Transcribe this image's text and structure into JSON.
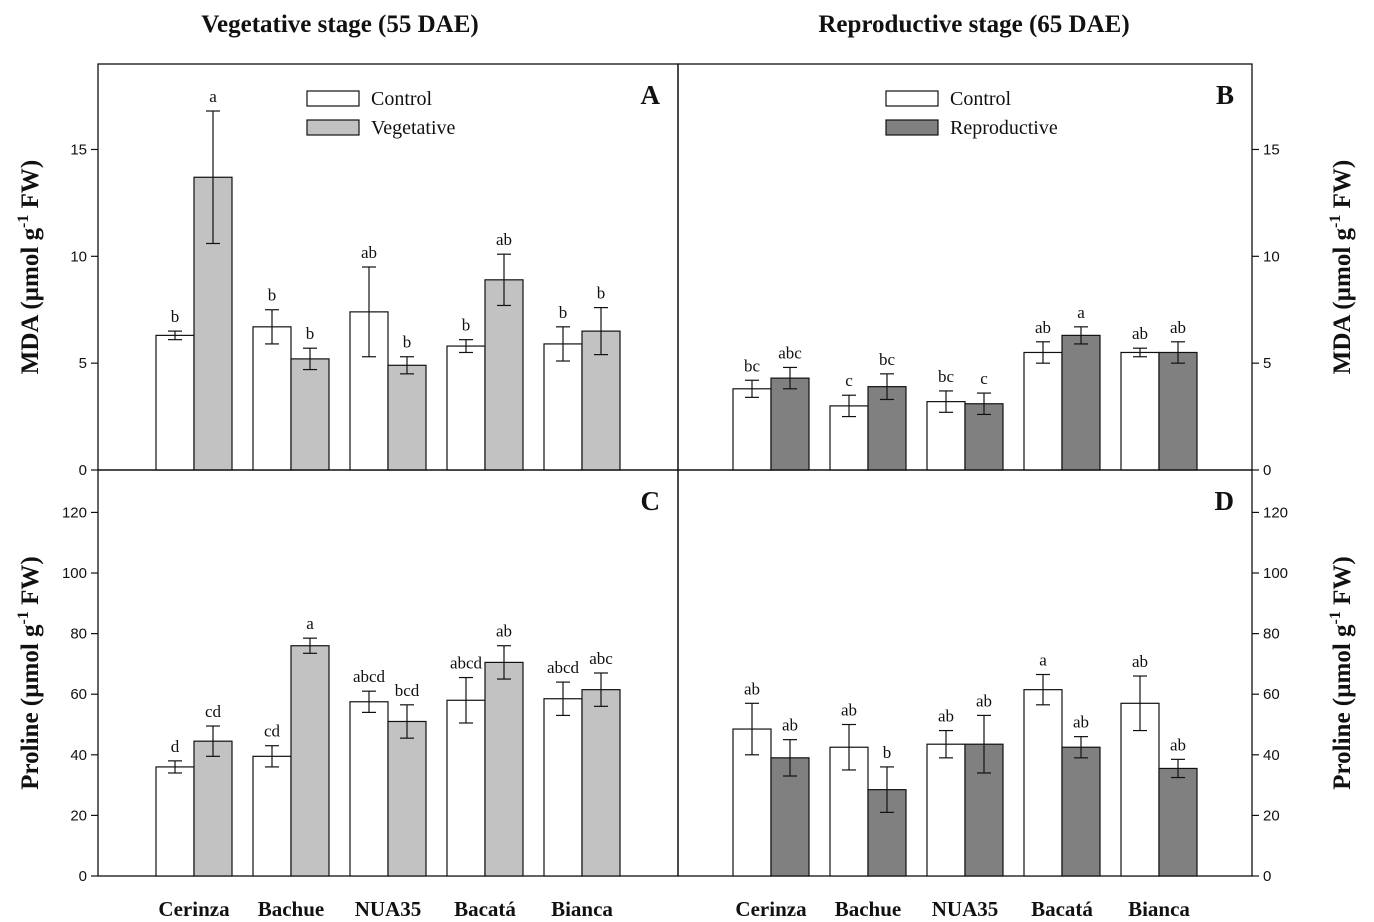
{
  "colors": {
    "control": "#ffffff",
    "vegetative": "#c2c2c2",
    "reproductive": "#808080",
    "outline": "#111111"
  },
  "stage_titles": {
    "left": "Vegetative stage (55 DAE)",
    "right": "Reproductive stage (65 DAE)"
  },
  "chart_data": [
    {
      "panel": "A",
      "type": "bar",
      "ylabel_main": "MDA (µmol g",
      "ylabel_sup": "-1",
      "ylabel_end": " FW)",
      "ylim": [
        0,
        19
      ],
      "yticks": [
        0,
        5,
        10,
        15
      ],
      "categories": [
        "Cerinza",
        "Bachue",
        "NUA35",
        "Bacatá",
        "Bianca"
      ],
      "series": [
        {
          "name": "Control",
          "color_key": "control",
          "values": [
            6.3,
            6.7,
            7.4,
            5.8,
            5.9
          ],
          "errors": [
            0.2,
            0.8,
            2.1,
            0.3,
            0.8
          ],
          "letters": [
            "b",
            "b",
            "ab",
            "b",
            "b"
          ]
        },
        {
          "name": "Vegetative",
          "color_key": "vegetative",
          "values": [
            13.7,
            5.2,
            4.9,
            8.9,
            6.5
          ],
          "errors": [
            3.1,
            0.5,
            0.4,
            1.2,
            1.1
          ],
          "letters": [
            "a",
            "b",
            "b",
            "ab",
            "b"
          ]
        }
      ]
    },
    {
      "panel": "B",
      "type": "bar",
      "ylabel_main": "MDA (µmol g",
      "ylabel_sup": "-1",
      "ylabel_end": " FW)",
      "ylim": [
        0,
        19
      ],
      "yticks": [
        0,
        5,
        10,
        15
      ],
      "categories": [
        "Cerinza",
        "Bachue",
        "NUA35",
        "Bacatá",
        "Bianca"
      ],
      "series": [
        {
          "name": "Control",
          "color_key": "control",
          "values": [
            3.8,
            3.0,
            3.2,
            5.5,
            5.5
          ],
          "errors": [
            0.4,
            0.5,
            0.5,
            0.5,
            0.2
          ],
          "letters": [
            "bc",
            "c",
            "bc",
            "ab",
            "ab"
          ]
        },
        {
          "name": "Reproductive",
          "color_key": "reproductive",
          "values": [
            4.3,
            3.9,
            3.1,
            6.3,
            5.5
          ],
          "errors": [
            0.5,
            0.6,
            0.5,
            0.4,
            0.5
          ],
          "letters": [
            "abc",
            "bc",
            "c",
            "a",
            "ab"
          ]
        }
      ]
    },
    {
      "panel": "C",
      "type": "bar",
      "ylabel_main": "Proline (µmol g",
      "ylabel_sup": "-1",
      "ylabel_end": " FW)",
      "ylim": [
        0,
        134
      ],
      "yticks": [
        0,
        20,
        40,
        60,
        80,
        100,
        120
      ],
      "categories": [
        "Cerinza",
        "Bachue",
        "NUA35",
        "Bacatá",
        "Bianca"
      ],
      "series": [
        {
          "name": "Control",
          "color_key": "control",
          "values": [
            36,
            39.5,
            57.5,
            58,
            58.5
          ],
          "errors": [
            2,
            3.5,
            3.5,
            7.5,
            5.5
          ],
          "letters": [
            "d",
            "cd",
            "abcd",
            "abcd",
            "abcd"
          ]
        },
        {
          "name": "Vegetative",
          "color_key": "vegetative",
          "values": [
            44.5,
            76,
            51,
            70.5,
            61.5
          ],
          "errors": [
            5,
            2.5,
            5.5,
            5.5,
            5.5
          ],
          "letters": [
            "cd",
            "a",
            "bcd",
            "ab",
            "abc"
          ]
        }
      ]
    },
    {
      "panel": "D",
      "type": "bar",
      "ylabel_main": "Proline (µmol g",
      "ylabel_sup": "-1",
      "ylabel_end": " FW)",
      "ylim": [
        0,
        134
      ],
      "yticks": [
        0,
        20,
        40,
        60,
        80,
        100,
        120
      ],
      "categories": [
        "Cerinza",
        "Bachue",
        "NUA35",
        "Bacatá",
        "Bianca"
      ],
      "series": [
        {
          "name": "Control",
          "color_key": "control",
          "values": [
            48.5,
            42.5,
            43.5,
            61.5,
            57
          ],
          "errors": [
            8.5,
            7.5,
            4.5,
            5,
            9
          ],
          "letters": [
            "ab",
            "ab",
            "ab",
            "a",
            "ab"
          ]
        },
        {
          "name": "Reproductive",
          "color_key": "reproductive",
          "values": [
            39,
            28.5,
            43.5,
            42.5,
            35.5
          ],
          "errors": [
            6,
            7.5,
            9.5,
            3.5,
            3
          ],
          "letters": [
            "ab",
            "b",
            "ab",
            "ab",
            "ab"
          ]
        }
      ]
    }
  ]
}
